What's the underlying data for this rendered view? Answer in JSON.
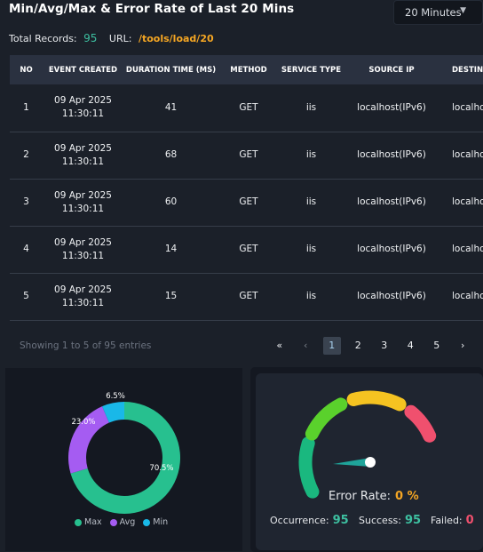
{
  "title": "Min/Avg/Max & Error Rate of Last 20 Mins",
  "range_select": {
    "value": "20 Minutes",
    "chevron_icon": "chevron-down-icon"
  },
  "meta": {
    "total_label": "Total Records:",
    "total_value": "95",
    "url_label": "URL:",
    "url_value": "/tools/load/20"
  },
  "table": {
    "columns": [
      "NO",
      "EVENT CREATED",
      "DURATION TIME (MS)",
      "METHOD",
      "SERVICE TYPE",
      "SOURCE IP",
      "DESTINA"
    ],
    "rows": [
      {
        "no": "1",
        "date": "09 Apr 2025",
        "time": "11:30:11",
        "duration": "41",
        "method": "GET",
        "service": "iis",
        "source_ip": "localhost(IPv6)",
        "dest": "localho"
      },
      {
        "no": "2",
        "date": "09 Apr 2025",
        "time": "11:30:11",
        "duration": "68",
        "method": "GET",
        "service": "iis",
        "source_ip": "localhost(IPv6)",
        "dest": "localho"
      },
      {
        "no": "3",
        "date": "09 Apr 2025",
        "time": "11:30:11",
        "duration": "60",
        "method": "GET",
        "service": "iis",
        "source_ip": "localhost(IPv6)",
        "dest": "localho"
      },
      {
        "no": "4",
        "date": "09 Apr 2025",
        "time": "11:30:11",
        "duration": "14",
        "method": "GET",
        "service": "iis",
        "source_ip": "localhost(IPv6)",
        "dest": "localho"
      },
      {
        "no": "5",
        "date": "09 Apr 2025",
        "time": "11:30:11",
        "duration": "15",
        "method": "GET",
        "service": "iis",
        "source_ip": "localhost(IPv6)",
        "dest": "localho"
      }
    ]
  },
  "pagination": {
    "showing": "Showing 1 to 5 of 95 entries",
    "first": "«",
    "prev": "‹",
    "pages": [
      "1",
      "2",
      "3",
      "4",
      "5"
    ],
    "next": "›",
    "last": "»",
    "active_page": "1"
  },
  "chart_data": {
    "type": "pie",
    "donut": true,
    "slices": [
      {
        "name": "Max",
        "value": 70.5,
        "label": "70.5%",
        "color": "#27c08f"
      },
      {
        "name": "Avg",
        "value": 23.0,
        "label": "23.0%",
        "color": "#a55cf2"
      },
      {
        "name": "Min",
        "value": 6.5,
        "label": "6.5%",
        "color": "#19b8e8"
      }
    ],
    "legend_position": "bottom"
  },
  "gauge": {
    "label": "Error Rate:",
    "value": "0 %",
    "value_fraction": 0,
    "segment_colors": [
      "#1ab87f",
      "#5ad12c",
      "#f5c321",
      "#f0506e"
    ],
    "needle_color": "#1fa49a"
  },
  "stats": {
    "occurrence_label": "Occurrence:",
    "occurrence_value": "95",
    "success_label": "Success:",
    "success_value": "95",
    "failed_label": "Failed:",
    "failed_value": "0"
  }
}
